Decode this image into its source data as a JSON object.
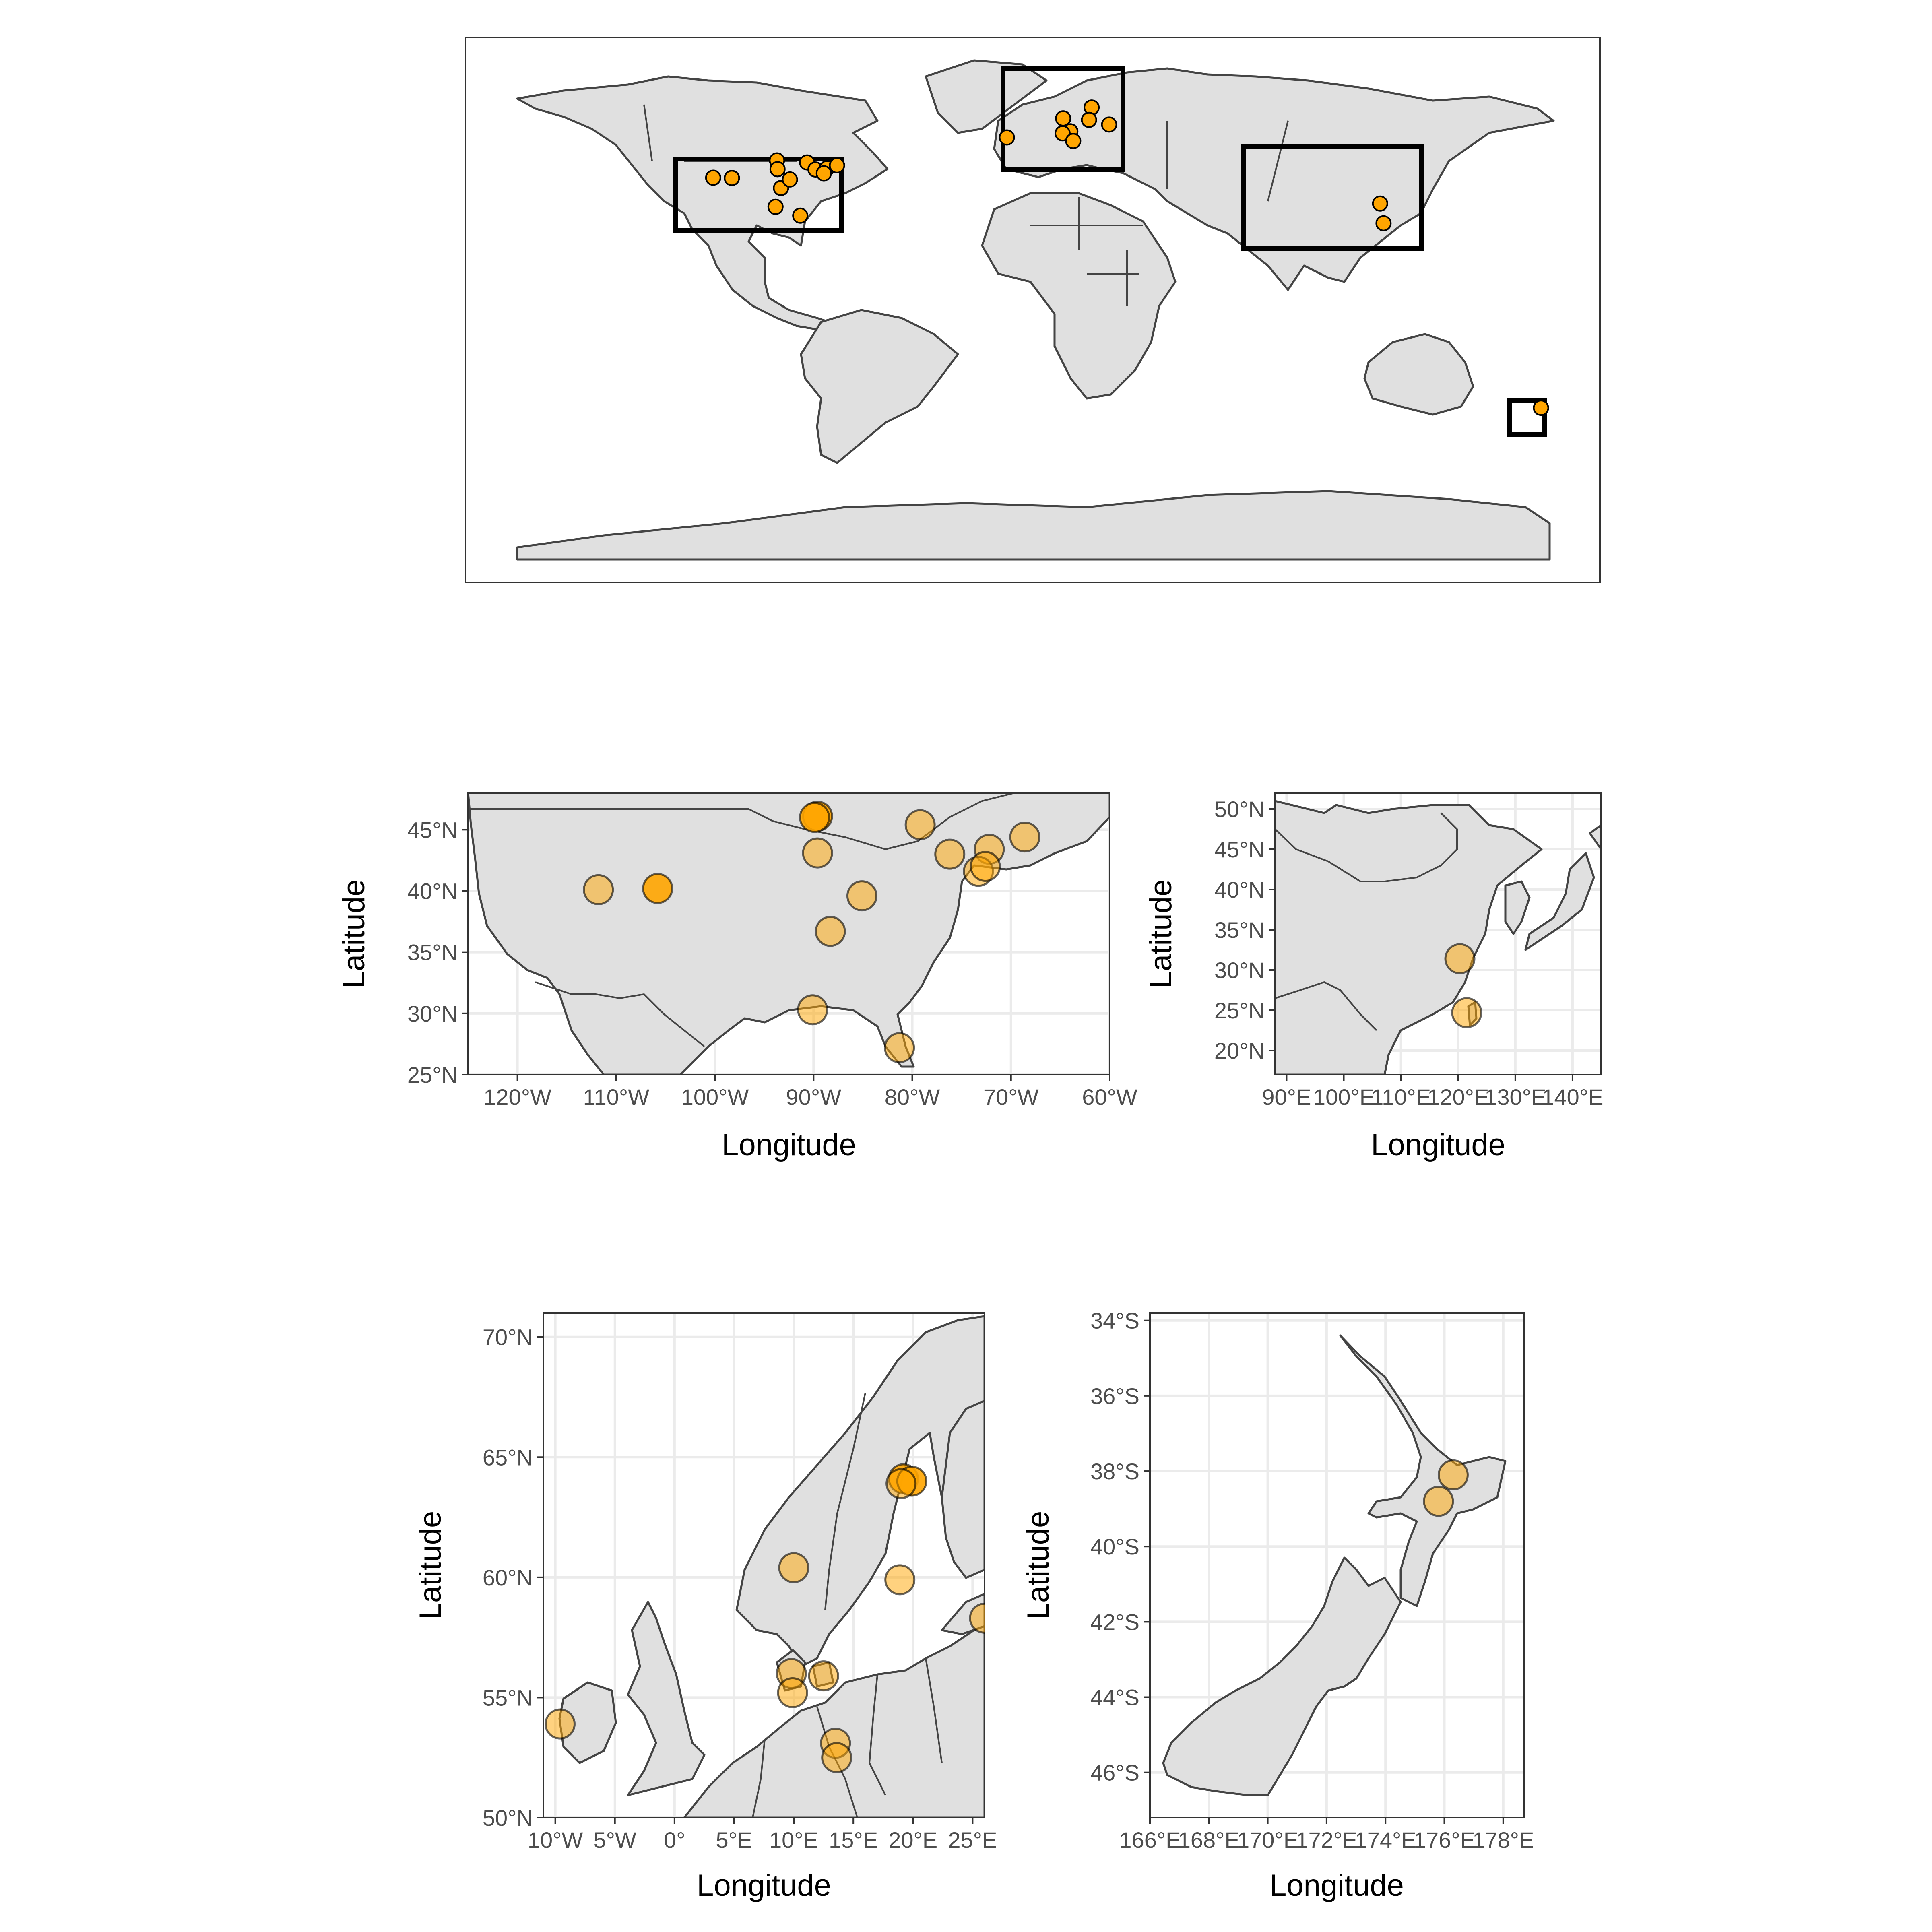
{
  "chart_data": [
    {
      "type": "map",
      "panel": "world",
      "extent": {
        "lon": [
          -180,
          180
        ],
        "lat": [
          -90,
          90
        ]
      },
      "grid": false,
      "boxes": [
        {
          "name": "north-america",
          "lon": [
            -125,
            -60
          ],
          "lat": [
            25,
            48
          ]
        },
        {
          "name": "europe",
          "lon": [
            -11,
            26
          ],
          "lat": [
            50,
            71
          ]
        },
        {
          "name": "east-asia",
          "lon": [
            88,
            145
          ],
          "lat": [
            17,
            52
          ]
        },
        {
          "name": "new-zealand",
          "lon": [
            166,
            178
          ],
          "lat": [
            -47,
            -34
          ]
        }
      ],
      "points": [
        {
          "lon": -111.8,
          "lat": 40.2
        },
        {
          "lon": -105.3,
          "lat": 40.1
        },
        {
          "lon": -89.6,
          "lat": 46.1
        },
        {
          "lon": -89.4,
          "lat": 43.1
        },
        {
          "lon": -88.2,
          "lat": 36.7
        },
        {
          "lon": -85.1,
          "lat": 39.6
        },
        {
          "lon": -90.1,
          "lat": 30.3
        },
        {
          "lon": -81.5,
          "lat": 27.3
        },
        {
          "lon": -79.1,
          "lat": 45.4
        },
        {
          "lon": -76.2,
          "lat": 43.0
        },
        {
          "lon": -72.2,
          "lat": 43.4
        },
        {
          "lon": -73.3,
          "lat": 41.7
        },
        {
          "lon": -68.7,
          "lat": 44.4
        },
        {
          "lon": -9.6,
          "lat": 53.9
        },
        {
          "lon": 10.0,
          "lat": 60.4
        },
        {
          "lon": 19.9,
          "lat": 64.1
        },
        {
          "lon": 19.0,
          "lat": 59.9
        },
        {
          "lon": 26.0,
          "lat": 58.3
        },
        {
          "lon": 12.5,
          "lat": 56.0
        },
        {
          "lon": 9.8,
          "lat": 55.3
        },
        {
          "lon": 13.5,
          "lat": 52.7
        },
        {
          "lon": 120.3,
          "lat": 31.4
        },
        {
          "lon": 121.5,
          "lat": 24.7
        },
        {
          "lon": 176.3,
          "lat": -38.1
        }
      ]
    },
    {
      "type": "map",
      "panel": "north-america",
      "xlabel": "Longitude",
      "ylabel": "Latitude",
      "xlim": [
        -125,
        -60
      ],
      "ylim": [
        25,
        48
      ],
      "xticks": [
        "120°W",
        "110°W",
        "100°W",
        "90°W",
        "80°W",
        "70°W",
        "60°W"
      ],
      "yticks": [
        "25°N",
        "30°N",
        "35°N",
        "40°N",
        "45°N"
      ],
      "points": [
        {
          "lon": -111.8,
          "lat": 40.1
        },
        {
          "lon": -105.8,
          "lat": 40.2,
          "opaque": true
        },
        {
          "lon": -89.6,
          "lat": 46.1,
          "opaque": true
        },
        {
          "lon": -89.9,
          "lat": 46.0,
          "opaque": true
        },
        {
          "lon": -89.6,
          "lat": 43.1
        },
        {
          "lon": -88.3,
          "lat": 36.7
        },
        {
          "lon": -85.1,
          "lat": 39.6
        },
        {
          "lon": -90.1,
          "lat": 30.3
        },
        {
          "lon": -81.3,
          "lat": 27.2
        },
        {
          "lon": -79.2,
          "lat": 45.4
        },
        {
          "lon": -76.2,
          "lat": 43.0
        },
        {
          "lon": -72.2,
          "lat": 43.4
        },
        {
          "lon": -73.3,
          "lat": 41.6
        },
        {
          "lon": -72.6,
          "lat": 42.0
        },
        {
          "lon": -68.6,
          "lat": 44.4
        }
      ]
    },
    {
      "type": "map",
      "panel": "east-asia",
      "xlabel": "Longitude",
      "ylabel": "Latitude",
      "xlim": [
        88,
        145
      ],
      "ylim": [
        17,
        52
      ],
      "xticks": [
        "90°E",
        "100°E",
        "110°E",
        "120°E",
        "130°E",
        "140°E"
      ],
      "yticks": [
        "20°N",
        "25°N",
        "30°N",
        "35°N",
        "40°N",
        "45°N",
        "50°N"
      ],
      "points": [
        {
          "lon": 120.3,
          "lat": 31.4
        },
        {
          "lon": 121.5,
          "lat": 24.7
        }
      ]
    },
    {
      "type": "map",
      "panel": "europe",
      "xlabel": "Longitude",
      "ylabel": "Latitude",
      "xlim": [
        -11,
        26
      ],
      "ylim": [
        50,
        71
      ],
      "xticks": [
        "10°W",
        "5°W",
        "0°",
        "5°E",
        "10°E",
        "15°E",
        "20°E",
        "25°E"
      ],
      "yticks": [
        "50°N",
        "55°N",
        "60°N",
        "65°N",
        "70°N"
      ],
      "points": [
        {
          "lon": -9.6,
          "lat": 53.9
        },
        {
          "lon": 10.0,
          "lat": 60.4
        },
        {
          "lon": 19.2,
          "lat": 64.1,
          "opaque": true
        },
        {
          "lon": 19.9,
          "lat": 64.0,
          "opaque": true
        },
        {
          "lon": 19.0,
          "lat": 63.9
        },
        {
          "lon": 18.9,
          "lat": 59.9
        },
        {
          "lon": 26.0,
          "lat": 58.3
        },
        {
          "lon": 12.5,
          "lat": 55.9
        },
        {
          "lon": 9.8,
          "lat": 56.0
        },
        {
          "lon": 9.9,
          "lat": 55.2
        },
        {
          "lon": 13.5,
          "lat": 53.1
        },
        {
          "lon": 13.6,
          "lat": 52.5
        }
      ]
    },
    {
      "type": "map",
      "panel": "new-zealand",
      "xlabel": "Longitude",
      "ylabel": "Latitude",
      "xlim": [
        166,
        178.7
      ],
      "ylim": [
        -47.2,
        -33.8
      ],
      "xticks": [
        "166°E",
        "168°E",
        "170°E",
        "172°E",
        "174°E",
        "176°E",
        "178°E"
      ],
      "yticks": [
        "46°S",
        "44°S",
        "42°S",
        "40°S",
        "38°S",
        "36°S",
        "34°S"
      ],
      "points": [
        {
          "lon": 176.3,
          "lat": -38.1
        },
        {
          "lon": 175.8,
          "lat": -38.8
        }
      ]
    }
  ],
  "colors": {
    "land": "#e0e0e0",
    "outline": "#444444",
    "point": "#ffa500",
    "box": "#000000"
  }
}
